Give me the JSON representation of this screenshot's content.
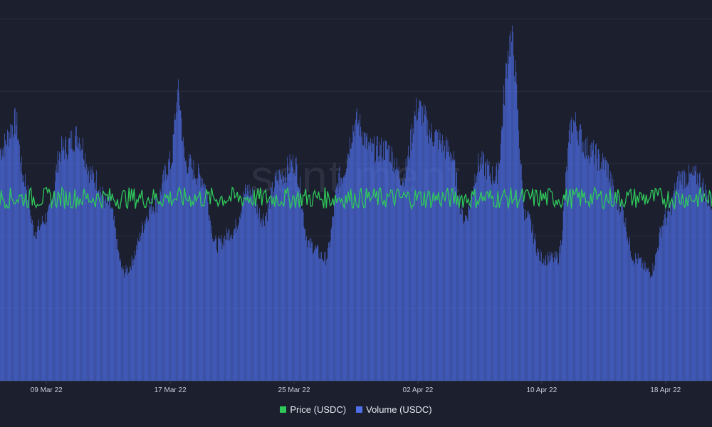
{
  "watermark": "santiment",
  "colors": {
    "background": "#1c1f2e",
    "grid": "#2a2e3f",
    "price": "#2fc95a",
    "volume": "#4f6fe8"
  },
  "chart_data": {
    "type": "bar",
    "title": "",
    "xlabel": "",
    "ylabel": "",
    "x_start": "2022-03-06",
    "x_end": "2022-04-21",
    "x_ticks": [
      "09 Mar 22",
      "17 Mar 22",
      "25 Mar 22",
      "02 Apr 22",
      "10 Apr 22",
      "18 Apr 22"
    ],
    "grid": true,
    "legend_position": "bottom-center",
    "series": [
      {
        "name": "Price (USDC)",
        "type": "line",
        "color": "#2fc95a",
        "value": 1.0,
        "ylim": [
          0.97,
          1.03
        ]
      },
      {
        "name": "Volume (USDC)",
        "type": "bar",
        "color": "#4f6fe8",
        "hourly": true,
        "ylim": [
          0,
          1.4
        ],
        "profile_dates": [
          "2022-03-06",
          "2022-03-07",
          "2022-03-07T12",
          "2022-03-08T06",
          "2022-03-09",
          "2022-03-10",
          "2022-03-11",
          "2022-03-12",
          "2022-03-13",
          "2022-03-14",
          "2022-03-16",
          "2022-03-17",
          "2022-03-17T12",
          "2022-03-18",
          "2022-03-19",
          "2022-03-20",
          "2022-03-21",
          "2022-03-22",
          "2022-03-23",
          "2022-03-24",
          "2022-03-25",
          "2022-03-26",
          "2022-03-27",
          "2022-03-28",
          "2022-03-29",
          "2022-03-30",
          "2022-03-31",
          "2022-04-01",
          "2022-04-02",
          "2022-04-03",
          "2022-04-04",
          "2022-04-05",
          "2022-04-06",
          "2022-04-07",
          "2022-04-08",
          "2022-04-09",
          "2022-04-10",
          "2022-04-11",
          "2022-04-12",
          "2022-04-13",
          "2022-04-14",
          "2022-04-15",
          "2022-04-16",
          "2022-04-17",
          "2022-04-18",
          "2022-04-19",
          "2022-04-20",
          "2022-04-21"
        ],
        "profile_values": [
          0.85,
          0.95,
          0.75,
          0.55,
          0.6,
          0.85,
          0.9,
          0.75,
          0.65,
          0.4,
          0.65,
          0.8,
          1.05,
          0.8,
          0.75,
          0.5,
          0.55,
          0.7,
          0.6,
          0.75,
          0.8,
          0.5,
          0.45,
          0.75,
          0.95,
          0.85,
          0.85,
          0.75,
          1.0,
          0.9,
          0.85,
          0.6,
          0.8,
          0.75,
          1.25,
          0.6,
          0.45,
          0.45,
          0.95,
          0.85,
          0.8,
          0.65,
          0.45,
          0.4,
          0.6,
          0.75,
          0.75,
          0.65
        ]
      }
    ]
  }
}
